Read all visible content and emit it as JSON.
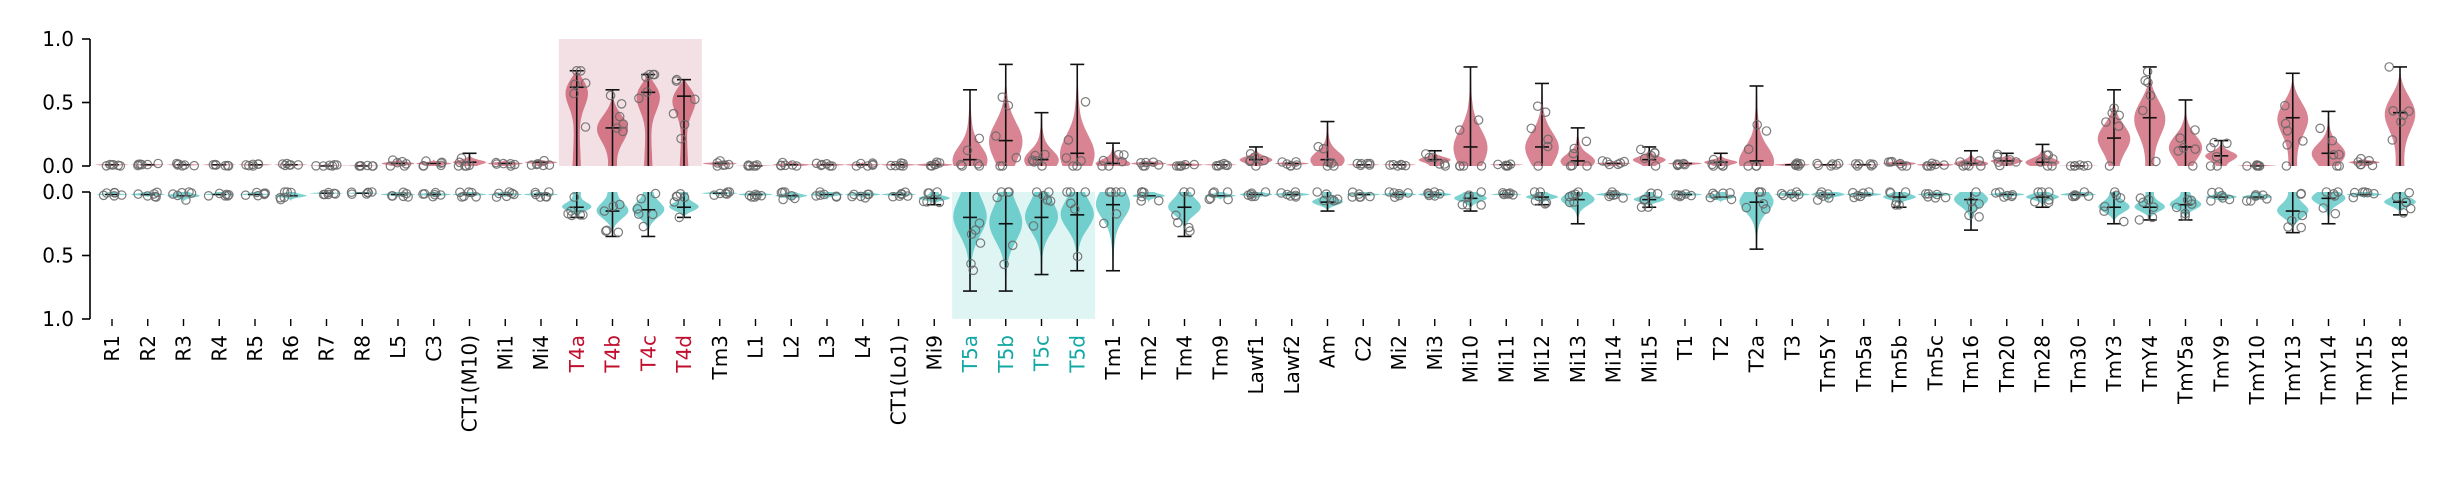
{
  "chart_data": {
    "type": "violin",
    "categories": [
      "R1",
      "R2",
      "R3",
      "R4",
      "R5",
      "R6",
      "R7",
      "R8",
      "L5",
      "C3",
      "CT1(M10)",
      "Mi1",
      "Mi4",
      "T4a",
      "T4b",
      "T4c",
      "T4d",
      "Tm3",
      "L1",
      "L2",
      "L3",
      "L4",
      "CT1(Lo1)",
      "Mi9",
      "T5a",
      "T5b",
      "T5c",
      "T5d",
      "Tm1",
      "Tm2",
      "Tm4",
      "Tm9",
      "Lawf1",
      "Lawf2",
      "Am",
      "C2",
      "Mi2",
      "Mi3",
      "Mi10",
      "Mi11",
      "Mi12",
      "Mi13",
      "Mi14",
      "Mi15",
      "T1",
      "T2",
      "T2a",
      "T3",
      "Tm5Y",
      "Tm5a",
      "Tm5b",
      "Tm5c",
      "Tm16",
      "Tm20",
      "Tm28",
      "Tm30",
      "TmY3",
      "TmY4",
      "TmY5a",
      "TmY9",
      "TmY10",
      "TmY13",
      "TmY14",
      "TmY15",
      "TmY18"
    ],
    "series": [
      {
        "color": "#c0394f",
        "highlight_categories": [
          "T4a",
          "T4b",
          "T4c",
          "T4d"
        ],
        "highlight_color": "#c0102e",
        "median": [
          0.01,
          0.01,
          0.01,
          0.01,
          0.01,
          0.01,
          0.0,
          0.0,
          0.02,
          0.02,
          0.03,
          0.02,
          0.03,
          0.62,
          0.3,
          0.58,
          0.55,
          0.02,
          0.0,
          0.01,
          0.01,
          0.01,
          0.01,
          0.01,
          0.05,
          0.2,
          0.05,
          0.1,
          0.02,
          0.02,
          0.01,
          0.01,
          0.05,
          0.02,
          0.05,
          0.01,
          0.01,
          0.05,
          0.15,
          0.01,
          0.15,
          0.04,
          0.02,
          0.05,
          0.02,
          0.03,
          0.04,
          0.01,
          0.01,
          0.01,
          0.02,
          0.01,
          0.02,
          0.04,
          0.03,
          0.0,
          0.22,
          0.38,
          0.15,
          0.08,
          0.0,
          0.38,
          0.1,
          0.03,
          0.42
        ],
        "max": [
          0.02,
          0.02,
          0.02,
          0.02,
          0.02,
          0.02,
          0.01,
          0.01,
          0.06,
          0.05,
          0.1,
          0.05,
          0.05,
          0.75,
          0.6,
          0.72,
          0.68,
          0.04,
          0.02,
          0.04,
          0.03,
          0.03,
          0.03,
          0.04,
          0.6,
          0.8,
          0.42,
          0.8,
          0.18,
          0.05,
          0.04,
          0.02,
          0.15,
          0.04,
          0.35,
          0.02,
          0.02,
          0.12,
          0.78,
          0.02,
          0.65,
          0.3,
          0.04,
          0.15,
          0.04,
          0.1,
          0.63,
          0.03,
          0.02,
          0.02,
          0.06,
          0.04,
          0.12,
          0.1,
          0.17,
          0.02,
          0.6,
          0.78,
          0.52,
          0.2,
          0.03,
          0.73,
          0.43,
          0.06,
          0.78
        ]
      },
      {
        "color": "#2bb7b3",
        "highlight_categories": [
          "T5a",
          "T5b",
          "T5c",
          "T5d"
        ],
        "highlight_color": "#13a8a4",
        "median": [
          0.02,
          0.02,
          0.03,
          0.02,
          0.02,
          0.03,
          0.01,
          0.01,
          0.02,
          0.02,
          0.02,
          0.02,
          0.02,
          0.12,
          0.15,
          0.14,
          0.12,
          0.01,
          0.02,
          0.03,
          0.02,
          0.02,
          0.02,
          0.05,
          0.2,
          0.25,
          0.2,
          0.18,
          0.1,
          0.03,
          0.12,
          0.03,
          0.02,
          0.02,
          0.08,
          0.02,
          0.02,
          0.02,
          0.05,
          0.02,
          0.04,
          0.06,
          0.02,
          0.06,
          0.02,
          0.04,
          0.08,
          0.02,
          0.02,
          0.02,
          0.04,
          0.02,
          0.06,
          0.02,
          0.04,
          0.02,
          0.12,
          0.12,
          0.1,
          0.04,
          0.04,
          0.15,
          0.05,
          0.02,
          0.08
        ],
        "max": [
          0.03,
          0.04,
          0.08,
          0.03,
          0.03,
          0.07,
          0.02,
          0.02,
          0.04,
          0.04,
          0.04,
          0.04,
          0.04,
          0.2,
          0.35,
          0.35,
          0.2,
          0.03,
          0.04,
          0.07,
          0.06,
          0.05,
          0.04,
          0.1,
          0.78,
          0.78,
          0.65,
          0.62,
          0.62,
          0.08,
          0.35,
          0.06,
          0.06,
          0.05,
          0.15,
          0.04,
          0.05,
          0.06,
          0.15,
          0.03,
          0.1,
          0.25,
          0.05,
          0.12,
          0.04,
          0.08,
          0.45,
          0.05,
          0.08,
          0.05,
          0.12,
          0.05,
          0.3,
          0.05,
          0.12,
          0.05,
          0.25,
          0.22,
          0.22,
          0.08,
          0.07,
          0.32,
          0.25,
          0.05,
          0.18
        ]
      }
    ],
    "ylim_top": [
      0,
      1.0
    ],
    "ylim_bottom": [
      0,
      1.0
    ],
    "yticks_top": [
      "0.0",
      "0.5",
      "1.0"
    ],
    "yticks_bottom": [
      "0.0",
      "0.5",
      "1.0"
    ],
    "bottom_axis_inverted": true,
    "highlight_boxes": [
      {
        "panel": "top",
        "from": "T4a",
        "to": "T4d",
        "fill": "#f3e0e4"
      },
      {
        "panel": "bottom",
        "from": "T5a",
        "to": "T5d",
        "fill": "#dff5f4"
      }
    ]
  }
}
